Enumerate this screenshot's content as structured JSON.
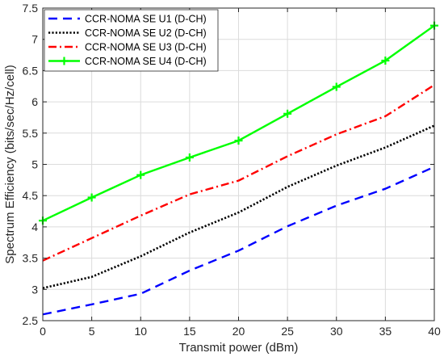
{
  "chart_data": {
    "type": "line",
    "xlabel": "Transmit power (dBm)",
    "ylabel": "Spectrum Efficiency (bits/sec/Hz/cell)",
    "xlim": [
      0,
      40
    ],
    "ylim": [
      2.5,
      7.5
    ],
    "x_ticks": [
      "0",
      "5",
      "10",
      "15",
      "20",
      "25",
      "30",
      "35",
      "40"
    ],
    "y_ticks": [
      "2.5",
      "3",
      "3.5",
      "4",
      "4.5",
      "5",
      "5.5",
      "6",
      "6.5",
      "7",
      "7.5"
    ],
    "grid": true,
    "legend_position": "top-left",
    "x": [
      0,
      5,
      10,
      15,
      20,
      25,
      30,
      35,
      40
    ],
    "series": [
      {
        "name": "CCR-NOMA SE U1 (D-CH)",
        "color": "#0000FF",
        "style": "dashed",
        "values": [
          2.6,
          2.76,
          2.93,
          3.3,
          3.62,
          4.01,
          4.34,
          4.61,
          4.96
        ]
      },
      {
        "name": "CCR-NOMA SE U2 (D-CH)",
        "color": "#000000",
        "style": "dotted",
        "values": [
          3.02,
          3.2,
          3.53,
          3.91,
          4.23,
          4.64,
          4.98,
          5.27,
          5.62
        ]
      },
      {
        "name": "CCR-NOMA SE U3 (D-CH)",
        "color": "#FF0000",
        "style": "dashdot",
        "values": [
          3.46,
          3.82,
          4.18,
          4.52,
          4.74,
          5.13,
          5.48,
          5.77,
          6.27
        ]
      },
      {
        "name": "CCR-NOMA SE U4 (D-CH)",
        "color": "#00FF00",
        "style": "solid-plus",
        "values": [
          4.1,
          4.47,
          4.83,
          5.11,
          5.38,
          5.81,
          6.24,
          6.66,
          7.22
        ]
      }
    ]
  }
}
